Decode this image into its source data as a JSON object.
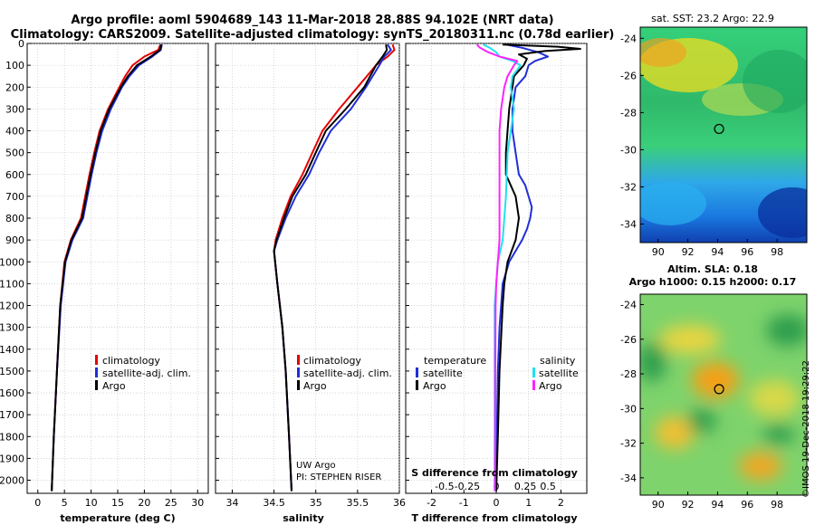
{
  "header": {
    "title_line1": "Argo profile: aoml 5904689_143 11-Mar-2018 28.88S 94.102E (NRT data)",
    "title_line2": "Climatology: CARS2009. Satellite-adjusted climatology: synTS_20180311.nc (0.78d earlier)"
  },
  "colors": {
    "red": "#e60000",
    "blue": "#1f2fd6",
    "black": "#000000",
    "cyan": "#22e0f0",
    "magenta": "#ff22ff"
  },
  "chart_data": [
    {
      "type": "line",
      "id": "temperature",
      "xlabel": "temperature (deg C)",
      "xlim": [
        -2,
        32
      ],
      "ylim": [
        2060,
        0
      ],
      "xticks": [
        "0",
        "5",
        "10",
        "15",
        "20",
        "25",
        "30"
      ],
      "xtick_values": [
        0,
        5,
        10,
        15,
        20,
        25,
        30
      ],
      "yticks": [
        "0",
        "100",
        "200",
        "300",
        "400",
        "500",
        "600",
        "700",
        "800",
        "900",
        "1000",
        "1100",
        "1200",
        "1300",
        "1400",
        "1500",
        "1600",
        "1700",
        "1800",
        "1900",
        "2000"
      ],
      "ytick_values": [
        0,
        100,
        200,
        300,
        400,
        500,
        600,
        700,
        800,
        900,
        1000,
        1100,
        1200,
        1300,
        1400,
        1500,
        1600,
        1700,
        1800,
        1900,
        2000
      ],
      "legend": [
        "climatology",
        "satellite-adj. clim.",
        "Argo"
      ],
      "series": [
        {
          "name": "climatology",
          "color": "red",
          "depth": [
            5,
            30,
            60,
            100,
            150,
            200,
            300,
            400,
            500,
            600,
            700,
            800,
            900,
            1000,
            1200,
            1500,
            1800,
            2050
          ],
          "values": [
            23.0,
            22.6,
            20.0,
            17.8,
            16.4,
            15.3,
            13.2,
            11.6,
            10.6,
            9.7,
            8.9,
            8.1,
            6.2,
            5.0,
            4.2,
            3.6,
            3.0,
            2.6
          ]
        },
        {
          "name": "satellite-adj. clim.",
          "color": "blue",
          "depth": [
            5,
            30,
            60,
            100,
            150,
            200,
            300,
            400,
            500,
            600,
            700,
            800,
            900,
            1000,
            1200,
            1500,
            1800,
            2050
          ],
          "values": [
            23.3,
            23.1,
            21.5,
            19.0,
            17.2,
            15.8,
            13.7,
            12.1,
            11.0,
            10.1,
            9.3,
            8.5,
            6.5,
            5.2,
            4.3,
            3.6,
            3.0,
            2.6
          ]
        },
        {
          "name": "Argo",
          "color": "black",
          "depth": [
            5,
            30,
            60,
            100,
            150,
            200,
            300,
            400,
            500,
            600,
            700,
            800,
            900,
            1000,
            1200,
            1500,
            1800,
            2050
          ],
          "values": [
            23.2,
            22.9,
            21.2,
            18.6,
            16.9,
            15.6,
            13.4,
            11.8,
            10.8,
            9.9,
            9.1,
            8.3,
            6.3,
            5.1,
            4.2,
            3.6,
            3.0,
            2.6
          ]
        }
      ]
    },
    {
      "type": "line",
      "id": "salinity",
      "xlabel": "salinity",
      "xlim": [
        33.8,
        36.0
      ],
      "ylim": [
        2060,
        0
      ],
      "xticks": [
        "34",
        "34.5",
        "35",
        "35.5",
        "36"
      ],
      "xtick_values": [
        34,
        34.5,
        35,
        35.5,
        36
      ],
      "legend": [
        "climatology",
        "satellite-adj. clim.",
        "Argo"
      ],
      "annotation_line1": "UW Argo",
      "annotation_line2": "PI: STEPHEN RISER",
      "series": [
        {
          "name": "climatology",
          "color": "red",
          "depth": [
            5,
            30,
            60,
            100,
            200,
            300,
            400,
            500,
            600,
            700,
            800,
            900,
            950,
            1100,
            1300,
            1500,
            1800,
            2050
          ],
          "values": [
            35.92,
            35.94,
            35.86,
            35.72,
            35.5,
            35.28,
            35.08,
            34.96,
            34.84,
            34.7,
            34.6,
            34.52,
            34.5,
            34.54,
            34.6,
            34.64,
            34.68,
            34.71
          ]
        },
        {
          "name": "satellite-adj. clim.",
          "color": "blue",
          "depth": [
            5,
            30,
            60,
            100,
            200,
            300,
            400,
            500,
            600,
            700,
            800,
            900,
            950,
            1100,
            1300,
            1500,
            1800,
            2050
          ],
          "values": [
            35.86,
            35.9,
            35.82,
            35.76,
            35.6,
            35.42,
            35.18,
            35.04,
            34.92,
            34.76,
            34.64,
            34.54,
            34.5,
            34.54,
            34.6,
            34.64,
            34.68,
            34.71
          ]
        },
        {
          "name": "Argo",
          "color": "black",
          "depth": [
            5,
            30,
            60,
            100,
            200,
            300,
            400,
            500,
            600,
            700,
            800,
            900,
            950,
            1100,
            1300,
            1500,
            1800,
            2050
          ],
          "values": [
            35.84,
            35.85,
            35.8,
            35.72,
            35.58,
            35.36,
            35.12,
            35.0,
            34.88,
            34.72,
            34.62,
            34.53,
            34.5,
            34.54,
            34.6,
            34.64,
            34.68,
            34.71
          ]
        }
      ]
    },
    {
      "type": "line",
      "id": "difference",
      "xlabel": "T difference from climatology",
      "top_xlabel": "S difference from climatology",
      "xlim": [
        -2.8,
        2.8
      ],
      "ylim": [
        2060,
        0
      ],
      "xticks": [
        "-2",
        "-1",
        "0",
        "1",
        "2"
      ],
      "xtick_values": [
        -2,
        -1,
        0,
        1,
        2
      ],
      "top_xticks": [
        "-0.5",
        "-0.25",
        "0",
        "0.25",
        "0.5"
      ],
      "top_xtick_values": [
        -1.6,
        -0.9,
        0,
        0.9,
        1.6
      ],
      "legend_left_title": "temperature",
      "legend_right_title": "salinity",
      "legend_left": [
        "satellite",
        "Argo"
      ],
      "legend_right": [
        "satellite",
        "Argo"
      ],
      "series": [
        {
          "name": "T satellite",
          "color": "blue",
          "depth": [
            5,
            20,
            40,
            60,
            80,
            100,
            150,
            200,
            300,
            400,
            500,
            600,
            650,
            700,
            750,
            800,
            850,
            900,
            1000,
            1100,
            1200,
            1300,
            1500,
            1800,
            2050
          ],
          "values": [
            0.3,
            0.8,
            1.3,
            1.6,
            1.2,
            1.0,
            0.9,
            0.6,
            0.5,
            0.5,
            0.6,
            0.7,
            0.9,
            1.0,
            1.1,
            1.05,
            0.95,
            0.8,
            0.4,
            0.2,
            0.15,
            0.1,
            0.05,
            0.02,
            0.0
          ]
        },
        {
          "name": "T Argo",
          "color": "black",
          "depth": [
            5,
            15,
            25,
            35,
            50,
            70,
            100,
            150,
            200,
            300,
            400,
            500,
            600,
            700,
            800,
            900,
            1000,
            1100,
            1200,
            1500,
            1800,
            2050
          ],
          "values": [
            0.2,
            1.9,
            2.6,
            1.5,
            0.7,
            0.95,
            0.85,
            0.55,
            0.5,
            0.4,
            0.35,
            0.3,
            0.3,
            0.6,
            0.7,
            0.6,
            0.35,
            0.25,
            0.2,
            0.1,
            0.05,
            0.0
          ]
        },
        {
          "name": "S satellite",
          "color": "cyan",
          "depth": [
            5,
            20,
            40,
            60,
            80,
            100,
            150,
            200,
            300,
            400,
            500,
            700,
            900,
            1000,
            1100,
            1200,
            1500,
            1800,
            2050
          ],
          "values": [
            -0.4,
            -0.2,
            0.0,
            0.1,
            0.5,
            0.75,
            0.5,
            0.45,
            0.55,
            0.45,
            0.35,
            0.3,
            0.2,
            0.05,
            0.0,
            -0.05,
            -0.05,
            -0.05,
            -0.05
          ]
        },
        {
          "name": "S Argo",
          "color": "magenta",
          "depth": [
            5,
            20,
            40,
            60,
            80,
            100,
            150,
            200,
            300,
            400,
            500,
            700,
            900,
            1000,
            1100,
            1200,
            1500,
            1800,
            2050
          ],
          "values": [
            -0.6,
            -0.5,
            -0.25,
            0.1,
            0.65,
            0.55,
            0.35,
            0.25,
            0.15,
            0.1,
            0.1,
            0.1,
            0.1,
            0.05,
            0.0,
            -0.02,
            -0.03,
            -0.03,
            -0.04
          ]
        }
      ]
    },
    {
      "type": "heatmap",
      "id": "sst_map",
      "title": "sat. SST: 23.2 Argo: 22.9",
      "xticks": [
        "90",
        "92",
        "94",
        "96",
        "98"
      ],
      "xtick_values": [
        90,
        92,
        94,
        96,
        98
      ],
      "yticks": [
        "-24",
        "-26",
        "-28",
        "-30",
        "-32",
        "-34"
      ],
      "ytick_values": [
        -24,
        -26,
        -28,
        -30,
        -32,
        -34
      ],
      "xlim": [
        88.8,
        100
      ],
      "ylim": [
        -35,
        -23.4
      ],
      "marker": {
        "lon": 94.1,
        "lat": -28.88
      }
    },
    {
      "type": "heatmap",
      "id": "sla_map",
      "title_line1": "Altim. SLA: 0.18",
      "title_line2": "Argo h1000: 0.15 h2000: 0.17",
      "xticks": [
        "90",
        "92",
        "94",
        "96",
        "98"
      ],
      "xtick_values": [
        90,
        92,
        94,
        96,
        98
      ],
      "yticks": [
        "-24",
        "-26",
        "-28",
        "-30",
        "-32",
        "-34"
      ],
      "ytick_values": [
        -24,
        -26,
        -28,
        -30,
        -32,
        -34
      ],
      "xlim": [
        88.8,
        100
      ],
      "ylim": [
        -35,
        -23.4
      ],
      "marker": {
        "lon": 94.1,
        "lat": -28.88
      }
    }
  ],
  "credit": "©IMOS 19-Dec-2018 19:29:22"
}
